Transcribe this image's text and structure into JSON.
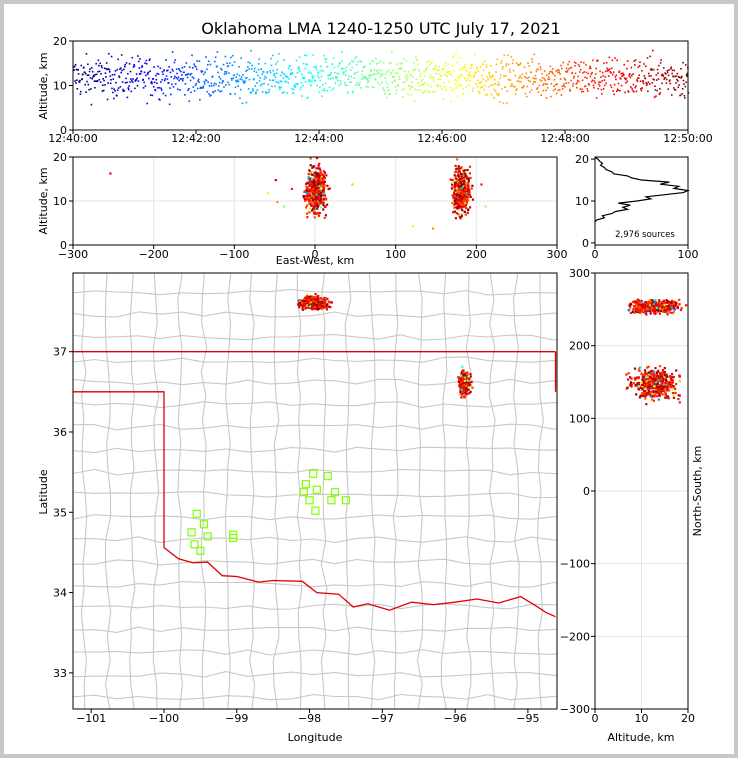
{
  "title": "Oklahoma LMA 1240-1250 UTC July 17, 2021",
  "source_count": "2,976 sources",
  "colors": {
    "jet": [
      "#00007f",
      "#0000ff",
      "#007fff",
      "#00ffff",
      "#7fff7f",
      "#ffff00",
      "#ff7f00",
      "#ff0000",
      "#7f0000"
    ],
    "state_border": "#e00000",
    "county": "#c8c8c8",
    "station": "#7fff00",
    "alt_profile": "#000000"
  },
  "chart_data": [
    {
      "id": "time-altitude",
      "type": "scatter",
      "ylabel": "Altitude, km",
      "xlim": [
        "12:40:00",
        "12:50:00"
      ],
      "ylim": [
        0,
        20
      ],
      "x_ticks": [
        "12:40:00",
        "12:42:00",
        "12:44:00",
        "12:46:00",
        "12:48:00",
        "12:50:00"
      ],
      "y_ticks": [
        "0",
        "10",
        "20"
      ],
      "points": {
        "count": 2976,
        "altitude_range_km": [
          5,
          20
        ],
        "core_altitude_km": 12,
        "color_by": "time"
      }
    },
    {
      "id": "eastwest-altitude",
      "type": "scatter",
      "xlabel": "East-West, km",
      "ylabel": "Altitude, km",
      "xlim": [
        -300,
        300
      ],
      "ylim": [
        0,
        20
      ],
      "x_ticks": [
        "−300",
        "−200",
        "−100",
        "0",
        "100",
        "200",
        "300"
      ],
      "y_ticks": [
        "0",
        "10",
        "20"
      ],
      "clusters": [
        {
          "x_km": 0,
          "spread_km": 12,
          "altitude_km": [
            5,
            20
          ]
        },
        {
          "x_km": 180,
          "spread_km": 10,
          "altitude_km": [
            5,
            20
          ]
        }
      ]
    },
    {
      "id": "altitude-histogram",
      "type": "line",
      "xlim": [
        0,
        100
      ],
      "ylim": [
        0,
        20
      ],
      "x_ticks": [
        "0",
        "100"
      ],
      "y_ticks": [
        "0",
        "10",
        "20"
      ],
      "profile": [
        [
          5,
          0
        ],
        [
          5.5,
          2
        ],
        [
          6,
          10
        ],
        [
          6.5,
          8
        ],
        [
          7,
          18
        ],
        [
          7.5,
          22
        ],
        [
          8,
          35
        ],
        [
          8.5,
          30
        ],
        [
          9,
          38
        ],
        [
          9.5,
          25
        ],
        [
          10,
          45
        ],
        [
          10.5,
          60
        ],
        [
          11,
          55
        ],
        [
          11.5,
          75
        ],
        [
          12,
          95
        ],
        [
          12.5,
          100
        ],
        [
          13,
          85
        ],
        [
          13.5,
          90
        ],
        [
          14,
          70
        ],
        [
          14.5,
          80
        ],
        [
          15,
          50
        ],
        [
          15.5,
          40
        ],
        [
          16,
          35
        ],
        [
          16.5,
          20
        ],
        [
          17,
          18
        ],
        [
          17.5,
          12
        ],
        [
          18,
          10
        ],
        [
          18.5,
          6
        ],
        [
          19,
          8
        ],
        [
          19.5,
          5
        ],
        [
          20,
          3
        ],
        [
          20.5,
          0
        ]
      ]
    },
    {
      "id": "plan-view",
      "type": "scatter",
      "xlabel": "Longitude",
      "ylabel": "Latitude",
      "xlim": [
        -101.25,
        -94.6
      ],
      "ylim": [
        32.55,
        37.98
      ],
      "x_ticks": [
        "−101",
        "−100",
        "−99",
        "−98",
        "−97",
        "−96",
        "−95"
      ],
      "y_ticks": [
        "33",
        "34",
        "35",
        "36",
        "37"
      ],
      "clusters": [
        {
          "lon": -97.95,
          "lat": 37.62,
          "size": 1
        },
        {
          "lon": -95.88,
          "lat": 36.62,
          "size": 0.6
        }
      ],
      "stations": [
        [
          -99.55,
          34.98
        ],
        [
          -99.45,
          34.85
        ],
        [
          -99.62,
          34.75
        ],
        [
          -99.4,
          34.7
        ],
        [
          -99.58,
          34.6
        ],
        [
          -99.5,
          34.52
        ],
        [
          -99.05,
          34.72
        ],
        [
          -99.05,
          34.68
        ],
        [
          -97.95,
          35.48
        ],
        [
          -97.75,
          35.45
        ],
        [
          -98.05,
          35.35
        ],
        [
          -97.9,
          35.28
        ],
        [
          -98.08,
          35.25
        ],
        [
          -97.65,
          35.25
        ],
        [
          -97.5,
          35.15
        ],
        [
          -97.7,
          35.15
        ],
        [
          -98.0,
          35.15
        ],
        [
          -97.92,
          35.02
        ]
      ]
    },
    {
      "id": "altitude-northsouth",
      "type": "scatter",
      "xlabel": "Altitude, km",
      "ylabel": "North-South, km",
      "xlim": [
        0,
        20
      ],
      "ylim": [
        -300,
        300
      ],
      "x_ticks": [
        "0",
        "10",
        "20"
      ],
      "y_ticks": [
        "−300",
        "−200",
        "−100",
        "0",
        "100",
        "200",
        "300"
      ],
      "clusters": [
        {
          "ns_km": 255,
          "altitude_km": [
            5,
            20
          ]
        },
        {
          "ns_km": 150,
          "altitude_km": [
            5,
            18
          ]
        }
      ]
    }
  ]
}
